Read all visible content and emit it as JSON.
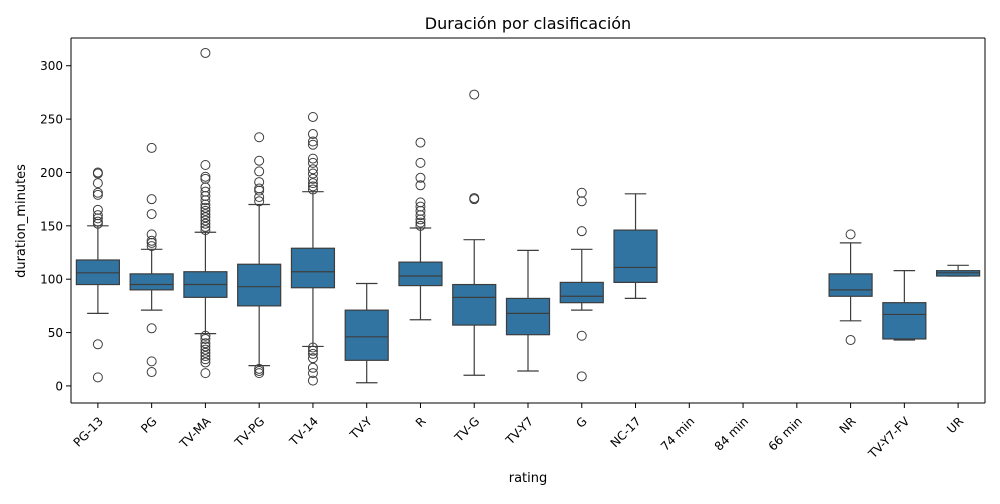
{
  "chart_data": {
    "type": "boxplot",
    "title": "Duración por clasificación",
    "xlabel": "rating",
    "ylabel": "duration_minutes",
    "ylim": [
      -16,
      326
    ],
    "yticks": [
      0,
      50,
      100,
      150,
      200,
      250,
      300
    ],
    "box_color": "#3274a1",
    "categories": [
      "PG-13",
      "PG",
      "TV-MA",
      "TV-PG",
      "TV-14",
      "TV-Y",
      "R",
      "TV-G",
      "TV-Y7",
      "G",
      "NC-17",
      "74 min",
      "84 min",
      "66 min",
      "NR",
      "TV-Y7-FV",
      "UR"
    ],
    "boxes": [
      {
        "category": "PG-13",
        "whislo": 68,
        "q1": 95,
        "med": 106,
        "q3": 118,
        "whishi": 150,
        "fliers": [
          8,
          39,
          152,
          154,
          157,
          160,
          165,
          179,
          181,
          190,
          199,
          200
        ]
      },
      {
        "category": "PG",
        "whislo": 71,
        "q1": 90,
        "med": 95,
        "q3": 105,
        "whishi": 128,
        "fliers": [
          13,
          23,
          54,
          131,
          134,
          136,
          142,
          161,
          175,
          223
        ]
      },
      {
        "category": "TV-MA",
        "whislo": 49,
        "q1": 83,
        "med": 95,
        "q3": 107,
        "whishi": 144,
        "fliers": [
          12,
          22,
          25,
          28,
          31,
          34,
          37,
          40,
          44,
          47,
          146,
          149,
          152,
          155,
          158,
          161,
          164,
          167,
          170,
          174,
          178,
          182,
          186,
          194,
          196,
          207,
          312
        ]
      },
      {
        "category": "TV-PG",
        "whislo": 19,
        "q1": 75,
        "med": 93,
        "q3": 114,
        "whishi": 170,
        "fliers": [
          12,
          14,
          16,
          173,
          177,
          183,
          185,
          191,
          201,
          211,
          233
        ]
      },
      {
        "category": "TV-14",
        "whislo": 37,
        "q1": 92,
        "med": 107,
        "q3": 129,
        "whishi": 182,
        "fliers": [
          5,
          12,
          17,
          26,
          30,
          33,
          36,
          184,
          187,
          190,
          194,
          199,
          203,
          209,
          213,
          226,
          229,
          236,
          252
        ]
      },
      {
        "category": "TV-Y",
        "whislo": 3,
        "q1": 24,
        "med": 46,
        "q3": 71,
        "whishi": 96,
        "fliers": []
      },
      {
        "category": "R",
        "whislo": 62,
        "q1": 94,
        "med": 103,
        "q3": 116,
        "whishi": 148,
        "fliers": [
          150,
          153,
          156,
          160,
          164,
          168,
          172,
          188,
          195,
          209,
          228
        ]
      },
      {
        "category": "TV-G",
        "whislo": 10,
        "q1": 57,
        "med": 83,
        "q3": 95,
        "whishi": 137,
        "fliers": [
          175,
          176,
          273
        ]
      },
      {
        "category": "TV-Y7",
        "whislo": 14,
        "q1": 48,
        "med": 68,
        "q3": 82,
        "whishi": 127,
        "fliers": []
      },
      {
        "category": "G",
        "whislo": 71,
        "q1": 78,
        "med": 84,
        "q3": 97,
        "whishi": 128,
        "fliers": [
          9,
          47,
          145,
          173,
          181
        ]
      },
      {
        "category": "NC-17",
        "whislo": 82,
        "q1": 97,
        "med": 111,
        "q3": 146,
        "whishi": 180,
        "fliers": []
      },
      {
        "category": "74 min",
        "whislo": null,
        "q1": null,
        "med": null,
        "q3": null,
        "whishi": null,
        "fliers": []
      },
      {
        "category": "84 min",
        "whislo": null,
        "q1": null,
        "med": null,
        "q3": null,
        "whishi": null,
        "fliers": []
      },
      {
        "category": "66 min",
        "whislo": null,
        "q1": null,
        "med": null,
        "q3": null,
        "whishi": null,
        "fliers": []
      },
      {
        "category": "NR",
        "whislo": 61,
        "q1": 84,
        "med": 90,
        "q3": 105,
        "whishi": 134,
        "fliers": [
          43,
          142
        ]
      },
      {
        "category": "TV-Y7-FV",
        "whislo": 43,
        "q1": 44,
        "med": 67,
        "q3": 78,
        "whishi": 108,
        "fliers": []
      },
      {
        "category": "UR",
        "whislo": 103,
        "q1": 103,
        "med": 106,
        "q3": 108,
        "whishi": 113,
        "fliers": []
      }
    ]
  }
}
